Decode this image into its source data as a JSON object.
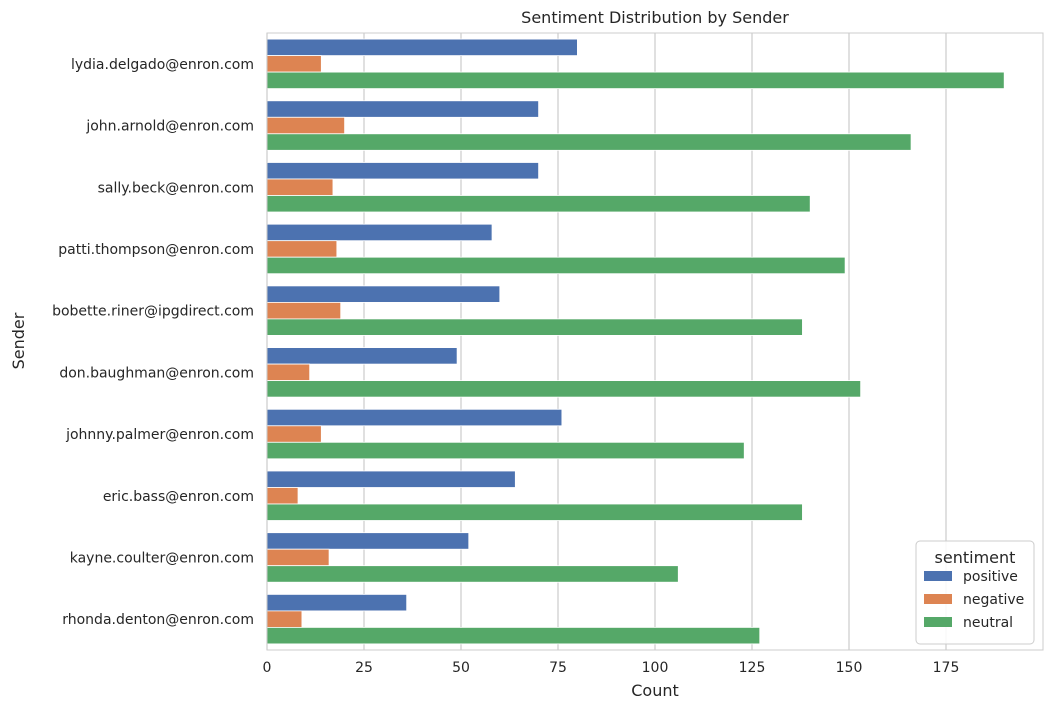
{
  "chart_data": {
    "type": "bar",
    "orientation": "horizontal",
    "title": "Sentiment Distribution by Sender",
    "xlabel": "Count",
    "ylabel": "Sender",
    "xlim": [
      0,
      200
    ],
    "xticks": [
      0,
      25,
      50,
      75,
      100,
      125,
      150,
      175
    ],
    "grid": "vertical",
    "legend": {
      "title": "sentiment",
      "placement": "lower-right"
    },
    "categories": [
      "lydia.delgado@enron.com",
      "john.arnold@enron.com",
      "sally.beck@enron.com",
      "patti.thompson@enron.com",
      "bobette.riner@ipgdirect.com",
      "don.baughman@enron.com",
      "johnny.palmer@enron.com",
      "eric.bass@enron.com",
      "kayne.coulter@enron.com",
      "rhonda.denton@enron.com"
    ],
    "series": [
      {
        "name": "positive",
        "color": "#4c72b0",
        "values": [
          80,
          70,
          70,
          58,
          60,
          49,
          76,
          64,
          52,
          36
        ]
      },
      {
        "name": "negative",
        "color": "#dd8452",
        "values": [
          14,
          20,
          17,
          18,
          19,
          11,
          14,
          8,
          16,
          9
        ]
      },
      {
        "name": "neutral",
        "color": "#55a868",
        "values": [
          190,
          166,
          140,
          149,
          138,
          153,
          123,
          138,
          106,
          127
        ]
      }
    ]
  }
}
